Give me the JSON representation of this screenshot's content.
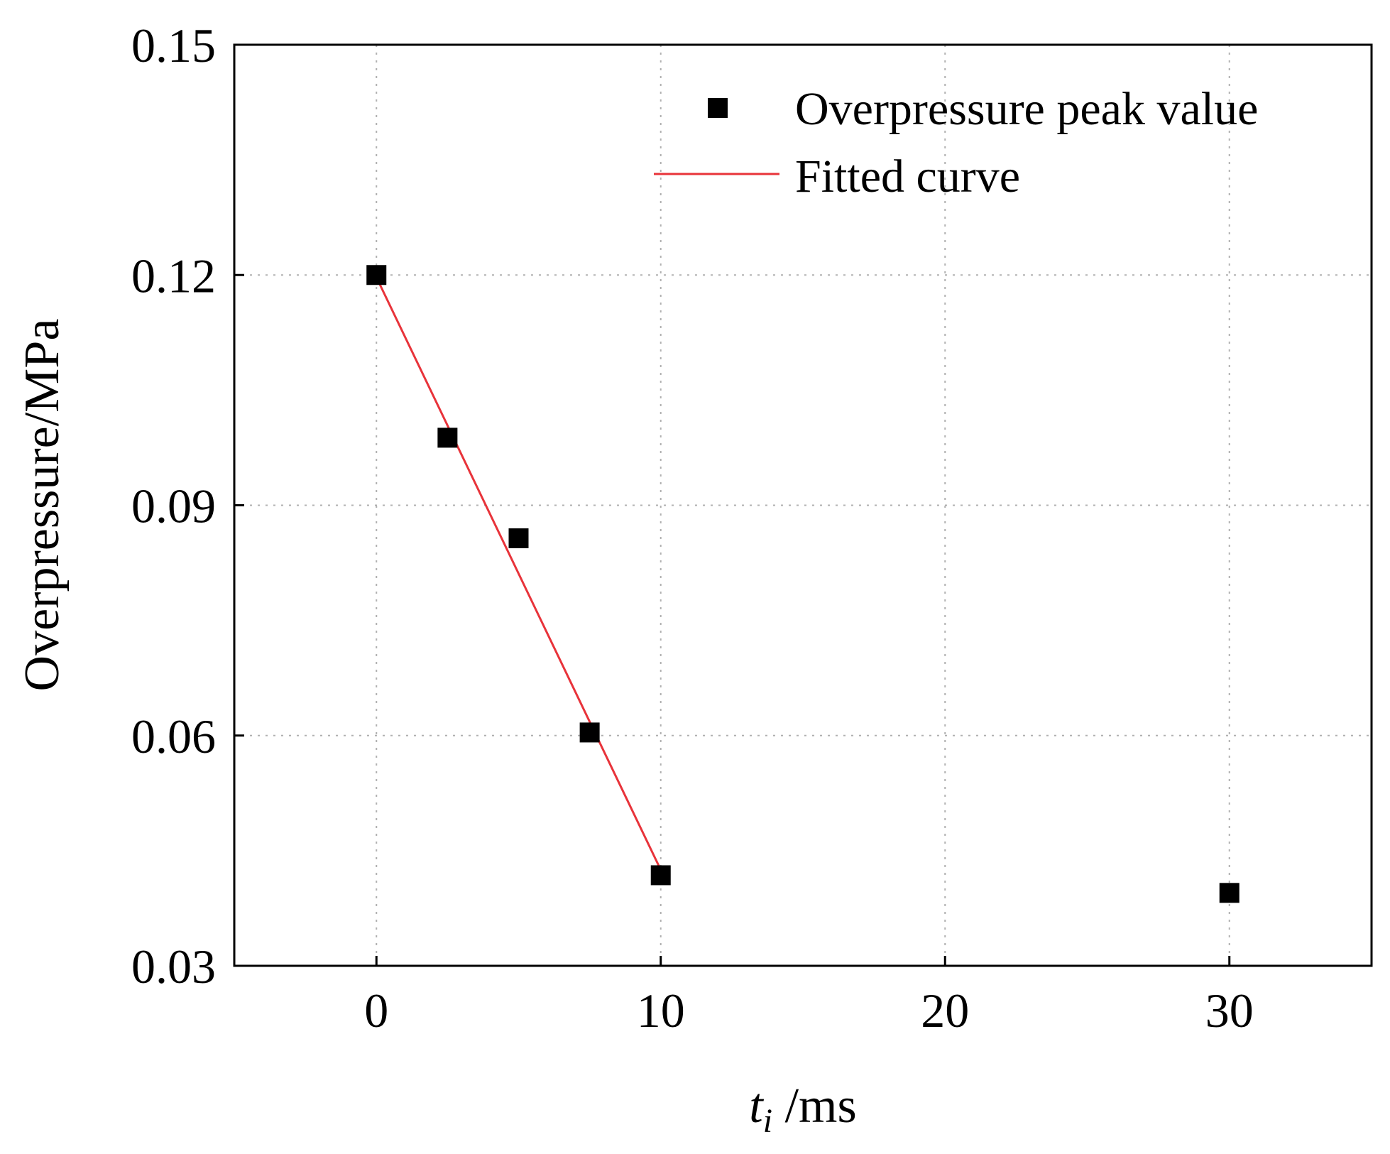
{
  "chart_data": {
    "type": "scatter",
    "title": "",
    "xlabel_main": "t",
    "xlabel_sub": "i",
    "xlabel_unit": " /ms",
    "ylabel": "Overpressure/MPa",
    "xlim": [
      -5,
      35
    ],
    "ylim": [
      0.03,
      0.15
    ],
    "xticks": [
      0,
      10,
      20,
      30
    ],
    "xtick_labels": [
      "0",
      "10",
      "20",
      "30"
    ],
    "yticks": [
      0.03,
      0.06,
      0.09,
      0.12,
      0.15
    ],
    "ytick_labels": [
      "0.03",
      "0.06",
      "0.09",
      "0.12",
      "0.15"
    ],
    "grid": true,
    "legend_position": "top-right",
    "series": [
      {
        "name": "Overpressure peak value",
        "kind": "scatter",
        "marker": "square",
        "color": "#000000",
        "x": [
          0,
          2.5,
          5,
          7.5,
          10,
          30
        ],
        "y": [
          0.12,
          0.0988,
          0.0857,
          0.0604,
          0.0418,
          0.0395
        ]
      },
      {
        "name": "Fitted curve",
        "kind": "line",
        "color": "#e8333a",
        "x": [
          0,
          10
        ],
        "y": [
          0.1197,
          0.0425
        ]
      }
    ]
  }
}
